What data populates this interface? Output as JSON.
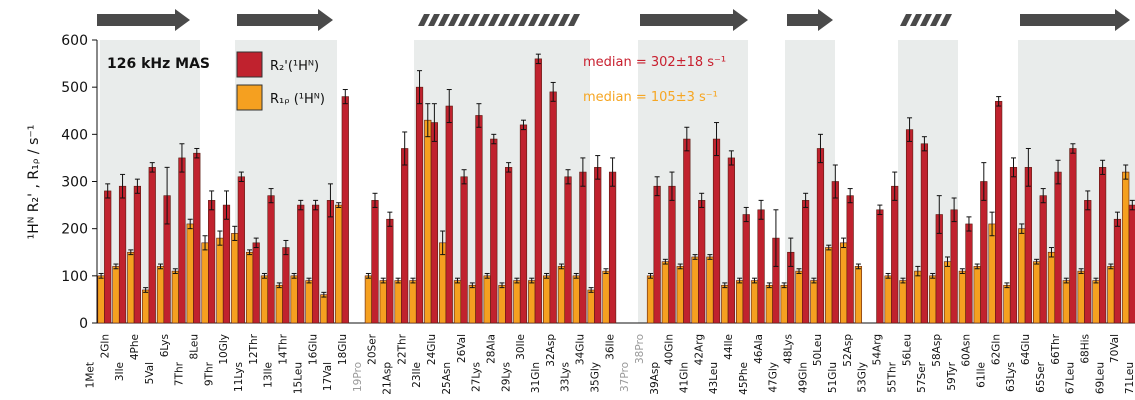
{
  "chart_data": {
    "type": "bar",
    "y_label": "¹Hᴺ R₂' , R₁ᵨ / s⁻¹",
    "ylim": [
      0,
      600
    ],
    "yticks": [
      0,
      100,
      200,
      300,
      400,
      500,
      600
    ],
    "annotations": [
      {
        "text": "126 kHz MAS",
        "color": "#111111"
      },
      {
        "text": "median = 302±18 s⁻¹",
        "color": "#c8202f"
      },
      {
        "text": "median = 105±3 s⁻¹",
        "color": "#f6a623"
      }
    ],
    "muted_indices": [
      18,
      36,
      37
    ],
    "categories": [
      "1Met",
      "2Gln",
      "3Ile",
      "4Phe",
      "5Val",
      "6Lys",
      "7Thr",
      "8Leu",
      "9Thr",
      "10Gly",
      "11Lys",
      "12Thr",
      "13Ile",
      "14Thr",
      "15Leu",
      "16Glu",
      "17Val",
      "18Glu",
      "19Pro",
      "20Ser",
      "21Asp",
      "22Thr",
      "23Ile",
      "24Glu",
      "25Asn",
      "26Val",
      "27Lys",
      "28Ala",
      "29Lys",
      "30Ile",
      "31Gln",
      "32Asp",
      "33Lys",
      "34Glu",
      "35Gly",
      "36Ile",
      "37Pro",
      "38Pro",
      "39Asp",
      "40Gln",
      "41Gln",
      "42Arg",
      "43Leu",
      "44Ile",
      "45Phe",
      "46Ala",
      "47Gly",
      "48Lys",
      "49Gln",
      "50Leu",
      "51Glu",
      "52Asp",
      "53Gly",
      "54Arg",
      "55Thr",
      "56Leu",
      "57Ser",
      "58Asp",
      "59Tyr",
      "60Asn",
      "61Ile",
      "62Gln",
      "63Lys",
      "64Glu",
      "65Ser",
      "66Thr",
      "67Leu",
      "68His",
      "69Leu",
      "70Val",
      "71Leu"
    ],
    "series": [
      {
        "name": "R₁ᵨ (¹Hᴺ)",
        "color": "#f5a020",
        "values": [
          null,
          100,
          120,
          150,
          70,
          120,
          110,
          210,
          170,
          180,
          190,
          150,
          100,
          80,
          100,
          90,
          60,
          250,
          null,
          100,
          90,
          90,
          90,
          430,
          170,
          90,
          80,
          100,
          80,
          90,
          90,
          100,
          120,
          100,
          70,
          110,
          null,
          null,
          100,
          130,
          120,
          140,
          140,
          80,
          90,
          90,
          80,
          80,
          110,
          90,
          160,
          170,
          120,
          null,
          100,
          90,
          110,
          100,
          130,
          110,
          120,
          210,
          80,
          200,
          130,
          150,
          90,
          110,
          90,
          120,
          320
        ],
        "errors": [
          null,
          5,
          5,
          5,
          5,
          5,
          5,
          10,
          15,
          15,
          15,
          5,
          5,
          5,
          5,
          5,
          5,
          5,
          null,
          5,
          5,
          5,
          5,
          35,
          25,
          5,
          5,
          5,
          5,
          5,
          5,
          5,
          5,
          5,
          5,
          5,
          null,
          null,
          5,
          5,
          5,
          5,
          5,
          5,
          5,
          5,
          5,
          5,
          5,
          5,
          5,
          10,
          5,
          null,
          5,
          5,
          10,
          5,
          10,
          5,
          5,
          25,
          5,
          10,
          5,
          10,
          5,
          5,
          5,
          5,
          15
        ]
      },
      {
        "name": "R₂'(¹Hᴺ)",
        "color": "#c0222e",
        "values": [
          null,
          280,
          290,
          290,
          330,
          270,
          350,
          360,
          260,
          250,
          310,
          170,
          270,
          160,
          250,
          250,
          260,
          480,
          null,
          260,
          220,
          370,
          500,
          425,
          460,
          310,
          440,
          390,
          330,
          420,
          560,
          490,
          310,
          320,
          330,
          320,
          null,
          null,
          290,
          290,
          390,
          260,
          390,
          350,
          230,
          240,
          180,
          150,
          260,
          370,
          300,
          270,
          null,
          240,
          290,
          410,
          380,
          230,
          240,
          210,
          300,
          470,
          330,
          330,
          270,
          320,
          370,
          260,
          330,
          220,
          250
        ],
        "errors": [
          null,
          15,
          25,
          15,
          10,
          60,
          30,
          10,
          20,
          30,
          10,
          10,
          15,
          15,
          10,
          10,
          35,
          15,
          null,
          15,
          15,
          35,
          35,
          40,
          35,
          15,
          25,
          10,
          10,
          10,
          10,
          20,
          15,
          30,
          25,
          30,
          null,
          null,
          20,
          30,
          25,
          15,
          35,
          15,
          15,
          20,
          60,
          30,
          15,
          30,
          35,
          15,
          null,
          10,
          30,
          25,
          15,
          40,
          25,
          15,
          40,
          10,
          20,
          40,
          15,
          25,
          10,
          20,
          15,
          15,
          10
        ]
      }
    ]
  }
}
